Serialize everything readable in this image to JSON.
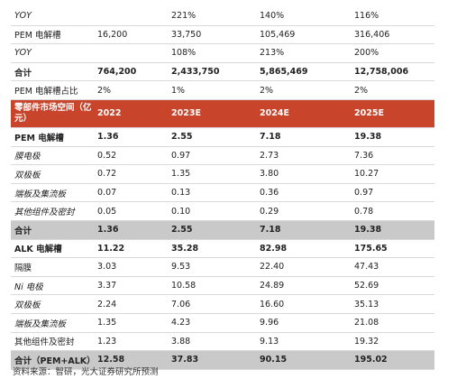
{
  "table": {
    "rows": [
      [
        "YOY",
        null,
        "221%",
        "140%",
        "116%"
      ],
      [
        "PEM 电解槽",
        "16,200",
        "33,750",
        "105,469",
        "316,406"
      ],
      [
        "YOY",
        null,
        "108%",
        "213%",
        "200%"
      ],
      [
        "合计",
        "764,200",
        "2,433,750",
        "5,865,469",
        "12,758,006"
      ],
      [
        "PEM 电解槽占比",
        "2%",
        "1%",
        "2%",
        "2%"
      ],
      [
        "零部件市场空间（亿元）",
        "2022",
        "2023E",
        "2024E",
        "2025E"
      ],
      [
        "PEM 电解槽",
        "1.36",
        "2.55",
        "7.18",
        "19.38"
      ],
      [
        "膜电极",
        "0.52",
        "0.97",
        "2.73",
        "7.36"
      ],
      [
        "双极板",
        "0.72",
        "1.35",
        "3.80",
        "10.27"
      ],
      [
        "端板及集流板",
        "0.07",
        "0.13",
        "0.36",
        "0.97"
      ],
      [
        "其他组件及密封",
        "0.05",
        "0.10",
        "0.29",
        "0.78"
      ],
      [
        "合计",
        "1.36",
        "2.55",
        "7.18",
        "19.38"
      ],
      [
        "ALK 电解槽",
        "11.22",
        "35.28",
        "82.98",
        "175.65"
      ],
      [
        "隔膜",
        "3.03",
        "9.53",
        "22.40",
        "47.43"
      ],
      [
        "Ni 电极",
        "3.37",
        "10.58",
        "24.89",
        "52.69"
      ],
      [
        "双极板",
        "2.24",
        "7.06",
        "16.60",
        "35.13"
      ],
      [
        "端板及集流板",
        "1.35",
        "4.23",
        "9.96",
        "21.08"
      ],
      [
        "其他组件及密封",
        "1.23",
        "3.88",
        "9.13",
        "19.32"
      ],
      [
        "合计（PEM+ALK）",
        "12.58",
        "37.83",
        "90.15",
        "195.02"
      ]
    ]
  },
  "footer": "资料来源：智研，光大证券研究所预测"
}
